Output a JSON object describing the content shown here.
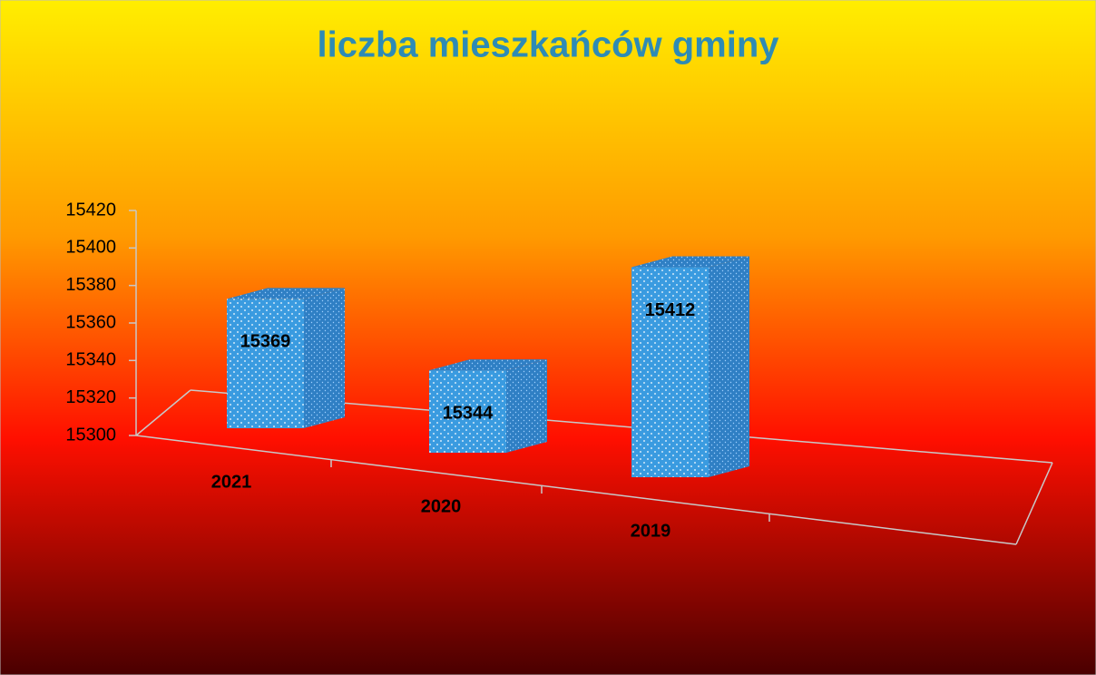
{
  "chart_data": {
    "type": "bar3d",
    "title": "liczba mieszkańców gminy",
    "categories": [
      "2021",
      "2020",
      "2019"
    ],
    "values": [
      15369,
      15344,
      15412
    ],
    "color": "#3a9be0",
    "ylim": [
      15300,
      15420
    ],
    "yticks": [
      15300,
      15320,
      15340,
      15360,
      15380,
      15400,
      15420
    ]
  }
}
